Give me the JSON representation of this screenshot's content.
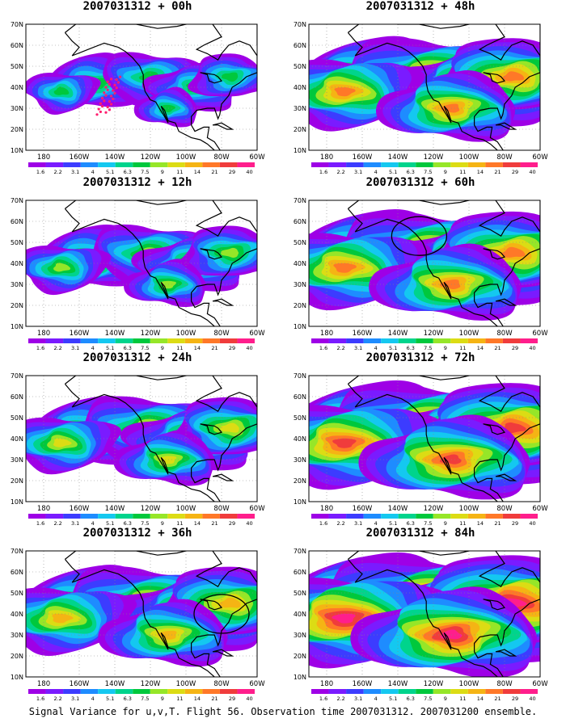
{
  "caption": "Signal Variance for u,v,T. Flight 56. Observation time 2007031312. 2007031200 ensemble.",
  "colorbar": {
    "labels": [
      "1.6",
      "2.2",
      "3.1",
      "4",
      "5.1",
      "6.3",
      "7.5",
      "9",
      "11",
      "14",
      "21",
      "29",
      "40"
    ],
    "colors": [
      "#9e00e6",
      "#7a1bff",
      "#3c3cff",
      "#1e8cff",
      "#14c8f0",
      "#00d48c",
      "#00c83c",
      "#96e628",
      "#dcdc14",
      "#f5b414",
      "#ff7828",
      "#f03c3c",
      "#ff1e8c"
    ]
  },
  "axes": {
    "xlabels": [
      "180",
      "160W",
      "140W",
      "120W",
      "100W",
      "80W",
      "60W"
    ],
    "ylabels": [
      "10N",
      "20N",
      "30N",
      "40N",
      "50N",
      "60N",
      "70N"
    ],
    "xlim_lon": [
      -190,
      -60
    ],
    "ylim_lat": [
      10,
      70
    ],
    "grid": true
  },
  "chart_data": [
    {
      "type": "heatmap",
      "title": "2007031312 + 00h",
      "column": "left",
      "row": 0,
      "level": 0.25,
      "annotation": "observation track"
    },
    {
      "type": "heatmap",
      "title": "2007031312 + 12h",
      "column": "left",
      "row": 1,
      "level": 0.35
    },
    {
      "type": "heatmap",
      "title": "2007031312 + 24h",
      "column": "left",
      "row": 2,
      "level": 0.45
    },
    {
      "type": "heatmap",
      "title": "2007031312 + 36h",
      "column": "left",
      "row": 3,
      "level": 0.6,
      "circle": {
        "lon": -80,
        "lat": 40
      }
    },
    {
      "type": "heatmap",
      "title": "2007031312 + 48h",
      "column": "right",
      "row": 0,
      "level": 0.65
    },
    {
      "type": "heatmap",
      "title": "2007031312 + 60h",
      "column": "right",
      "row": 1,
      "level": 0.72,
      "circle": {
        "lon": -128,
        "lat": 53
      }
    },
    {
      "type": "heatmap",
      "title": "2007031312 + 72h",
      "column": "right",
      "row": 2,
      "level": 0.82
    },
    {
      "type": "heatmap",
      "title": "2007031312 + 84h",
      "column": "right",
      "row": 3,
      "level": 0.9
    }
  ]
}
